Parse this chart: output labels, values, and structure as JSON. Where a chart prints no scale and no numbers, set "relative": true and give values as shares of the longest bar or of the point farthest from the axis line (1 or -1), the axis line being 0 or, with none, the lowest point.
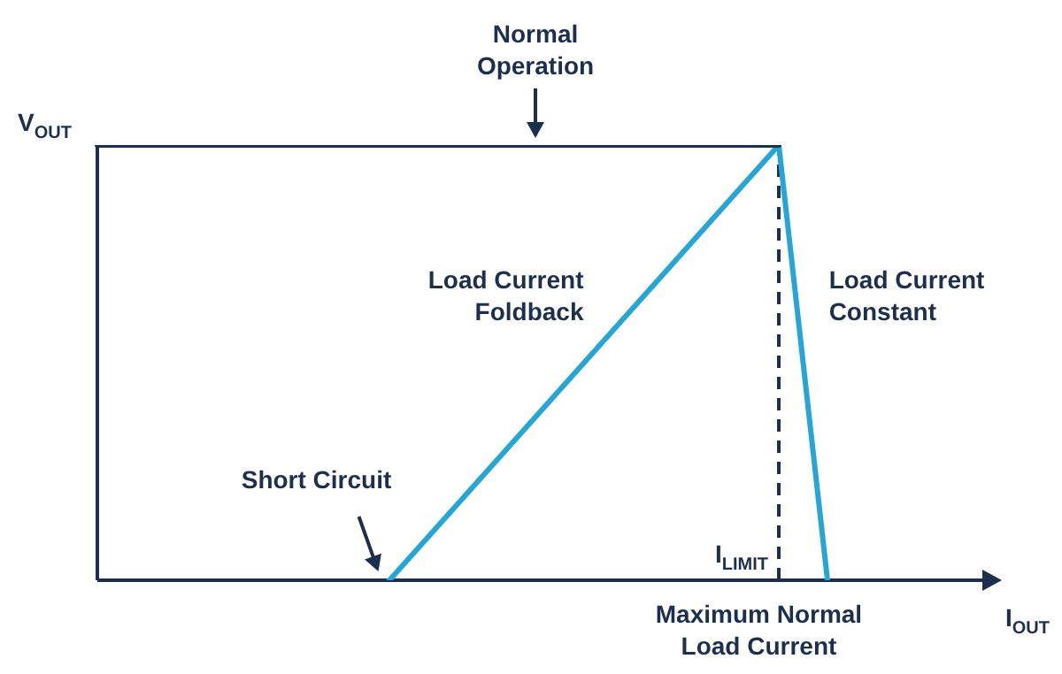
{
  "chart_data": {
    "type": "line",
    "relative": true,
    "xlabel": "I$_{OUT}$",
    "ylabel": "V$_{OUT}$",
    "legend": false,
    "grid": false,
    "marker": "none",
    "line_style": "solid",
    "categories": [
      null,
      null,
      null,
      null,
      null,
      null,
      null,
      null,
      null,
      null,
      null,
      null,
      null,
      null,
      null,
      null,
      null,
      null,
      null
    ],
    "series": [
      {
        "color": "#1c2f4f",
        "values": [
          1,
          null,
          null,
          null,
          null,
          null,
          null,
          null,
          null,
          null,
          null,
          null,
          null,
          null,
          1,
          null,
          null,
          null,
          null
        ]
      },
      {
        "color": "#27a6d6",
        "values": [
          null,
          null,
          null,
          null,
          null,
          null,
          0,
          null,
          null,
          null,
          null,
          null,
          null,
          null,
          1,
          0,
          null,
          null,
          null
        ]
      }
    ],
    "annotations": [
      "Normal Operation",
      "Load Current Foldback",
      "Load Current Constant",
      "Short Circuit",
      "Maximum Normal Load Current",
      "I$_{LIMIT}$"
    ]
  }
}
